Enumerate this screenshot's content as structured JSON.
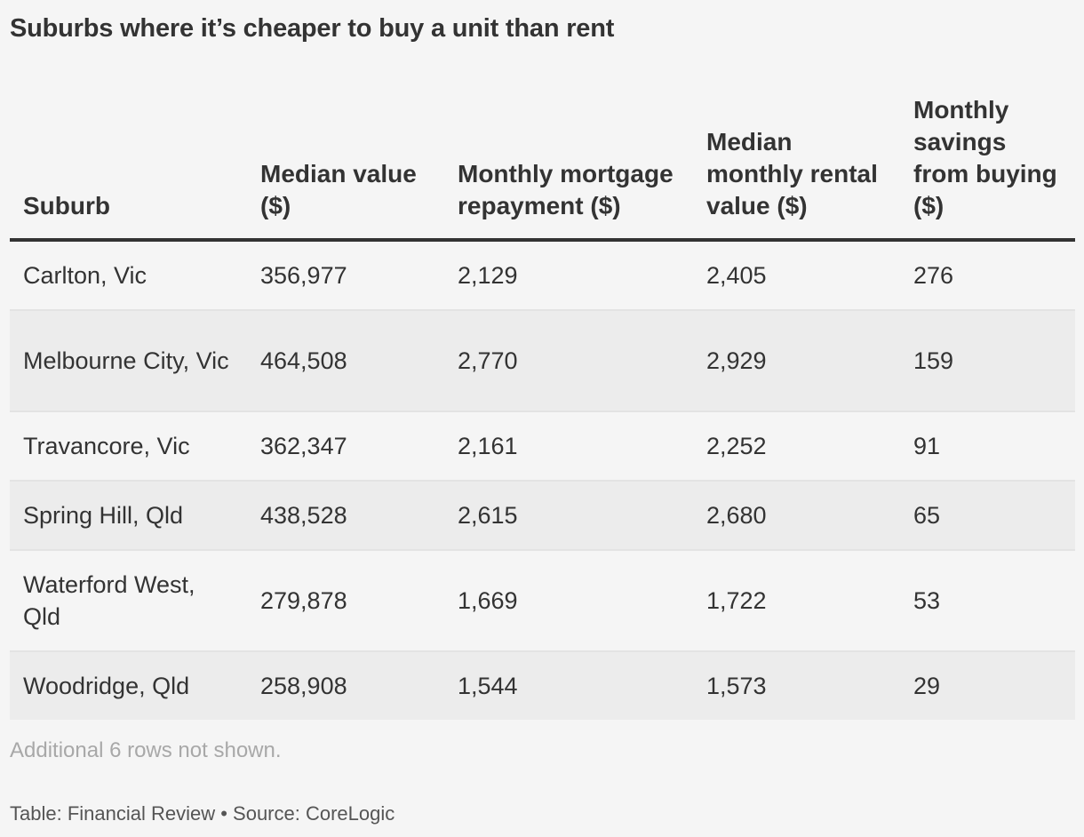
{
  "chart_data": {
    "type": "table",
    "title": "Suburbs where it’s cheaper to buy a unit than rent",
    "columns": [
      "Suburb",
      "Median value ($)",
      "Monthly mortgage repayment ($)",
      "Median monthly rental value ($)",
      "Monthly savings from buying ($)"
    ],
    "rows": [
      [
        "Carlton, Vic",
        "356,977",
        "2,129",
        "2,405",
        "276"
      ],
      [
        "Melbourne City, Vic",
        "464,508",
        "2,770",
        "2,929",
        "159"
      ],
      [
        "Travancore, Vic",
        "362,347",
        "2,161",
        "2,252",
        "91"
      ],
      [
        "Spring Hill, Qld",
        "438,528",
        "2,615",
        "2,680",
        "65"
      ],
      [
        "Waterford West, Qld",
        "279,878",
        "1,669",
        "1,722",
        "53"
      ],
      [
        "Woodridge, Qld",
        "258,908",
        "1,544",
        "1,573",
        "29"
      ]
    ],
    "note": "Additional 6 rows not shown.",
    "source": "Table: Financial Review • Source: CoreLogic"
  },
  "colors": {
    "background": "#f5f5f5",
    "text": "#333333",
    "header_rule": "#333333",
    "row_alt": "#ececec",
    "note_text": "#a8a8a8"
  }
}
